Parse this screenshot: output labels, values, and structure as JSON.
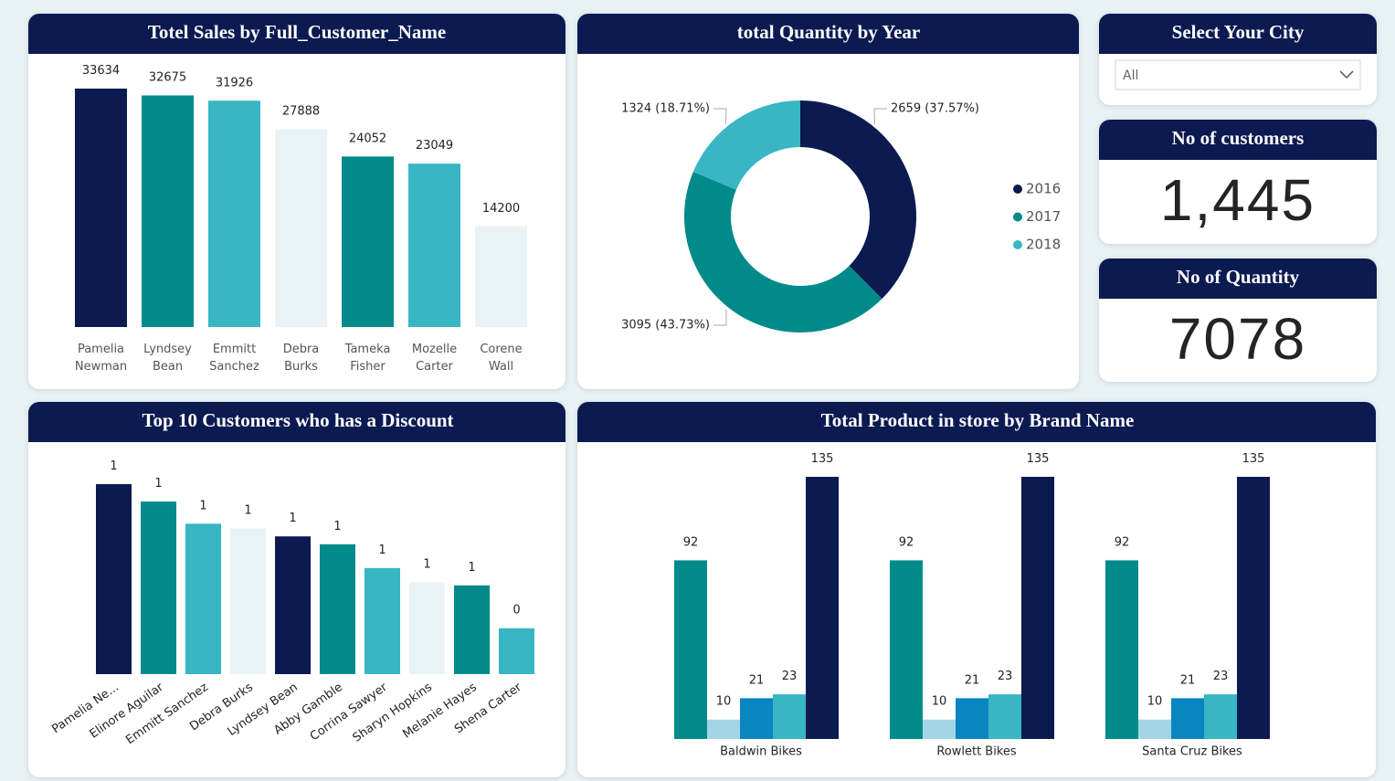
{
  "chart_data": [
    {
      "type": "bar",
      "title": "Totel Sales by Full_Customer_Name",
      "categories": [
        "Pamelia Newman",
        "Lyndsey Bean",
        "Emmitt Sanchez",
        "Debra Burks",
        "Tameka Fisher",
        "Mozelle Carter",
        "Corene Wall"
      ],
      "values": [
        33634,
        32675,
        31926,
        27888,
        24052,
        23049,
        14200
      ],
      "colors": [
        "#0b1a50",
        "#008b8a",
        "#38b6c4",
        "#e9f3f6",
        "#008b8a",
        "#38b6c4",
        "#e9f3f6"
      ]
    },
    {
      "type": "donut",
      "title": "total Quantity by Year",
      "categories": [
        "2016",
        "2017",
        "2018"
      ],
      "values": [
        2659,
        3095,
        1324
      ],
      "value_labels": [
        "2659 (37.57%)",
        "3095 (43.73%)",
        "1324 (18.71%)"
      ],
      "colors": [
        "#0b1a50",
        "#008b8a",
        "#38b6c4"
      ]
    },
    {
      "type": "bar",
      "title": "Top 10 Customers who has a Discount",
      "categories": [
        "Pamelia Ne...",
        "Elinore Aguilar",
        "Emmitt Sanchez",
        "Debra Burks",
        "Lyndsey Bean",
        "Abby Gamble",
        "Corrina Sawyer",
        "Sharyn Hopkins",
        "Melanie Hayes",
        "Shena Carter"
      ],
      "values": [
        1.2,
        1.09,
        0.95,
        0.92,
        0.87,
        0.82,
        0.67,
        0.58,
        0.56,
        0.29
      ],
      "value_labels": [
        "1",
        "1",
        "1",
        "1",
        "1",
        "1",
        "1",
        "1",
        "1",
        "0"
      ],
      "colors": [
        "#0b1a50",
        "#008b8a",
        "#38b6c4",
        "#e9f3f6",
        "#0b1a50",
        "#008b8a",
        "#38b6c4",
        "#e9f3f6",
        "#008b8a",
        "#38b6c4"
      ]
    },
    {
      "type": "grouped_bar",
      "title": "Total Product in store by Brand Name",
      "categories": [
        "Baldwin Bikes",
        "Rowlett Bikes",
        "Santa Cruz Bikes"
      ],
      "series": [
        {
          "color": "#008b8a",
          "values": [
            92,
            92,
            92
          ]
        },
        {
          "color": "#a3d5e6",
          "values": [
            10,
            10,
            10
          ]
        },
        {
          "color": "#0a85c2",
          "values": [
            21,
            21,
            21
          ]
        },
        {
          "color": "#38b6c4",
          "values": [
            23,
            23,
            23
          ]
        },
        {
          "color": "#0b1a50",
          "values": [
            135,
            135,
            135
          ]
        }
      ]
    }
  ],
  "slicer": {
    "title": "Select Your City",
    "value": "All"
  },
  "cards": [
    {
      "title": "No of customers",
      "value": 1445,
      "label": "1,445"
    },
    {
      "title": "No of Quantity",
      "value": 7078
    }
  ]
}
